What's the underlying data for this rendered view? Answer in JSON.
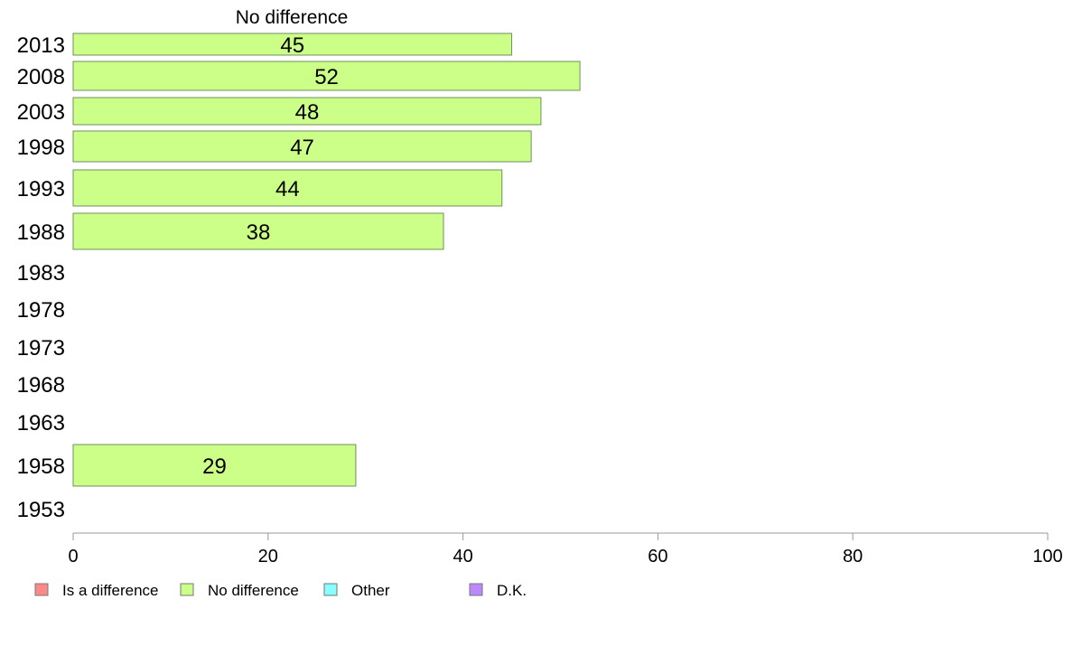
{
  "chart_data": {
    "type": "bar",
    "orientation": "horizontal",
    "stacked": true,
    "header": "No difference",
    "categories": [
      "2013",
      "2008",
      "2003",
      "1998",
      "1993",
      "1988",
      "1983",
      "1978",
      "1973",
      "1968",
      "1963",
      "1958",
      "1953"
    ],
    "series": [
      {
        "name": "Is a difference",
        "color": "#ff8888",
        "values": [
          null,
          null,
          null,
          null,
          null,
          null,
          null,
          null,
          null,
          null,
          null,
          null,
          null
        ]
      },
      {
        "name": "No difference",
        "color": "#ccff88",
        "values": [
          45,
          52,
          48,
          47,
          44,
          38,
          null,
          null,
          null,
          null,
          null,
          29,
          null
        ]
      },
      {
        "name": "Other",
        "color": "#88ffff",
        "values": [
          null,
          null,
          null,
          null,
          null,
          null,
          null,
          null,
          null,
          null,
          null,
          null,
          null
        ]
      },
      {
        "name": "D.K.",
        "color": "#bb88ff",
        "values": [
          null,
          null,
          null,
          null,
          null,
          null,
          null,
          null,
          null,
          null,
          null,
          null,
          null
        ]
      }
    ],
    "xlim": [
      0,
      100
    ],
    "xticks": [
      0,
      20,
      40,
      60,
      80,
      100
    ],
    "grid": false,
    "legend_position": "bottom"
  }
}
